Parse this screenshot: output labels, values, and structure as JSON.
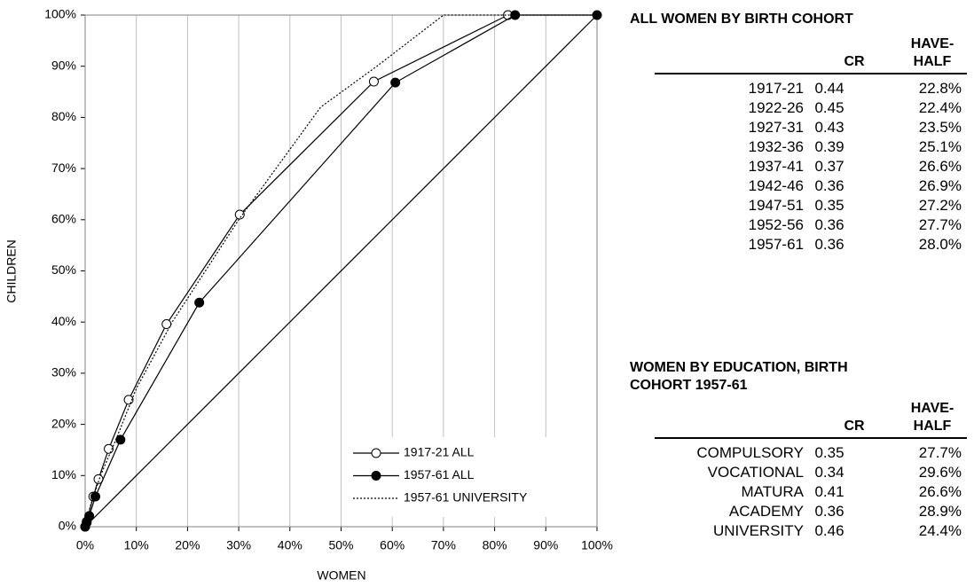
{
  "chart_data": {
    "type": "line",
    "x_label": "WOMEN",
    "y_label": "CHILDREN",
    "xlim": [
      0,
      100
    ],
    "ylim": [
      0,
      100
    ],
    "grid": true,
    "legend": "lower right",
    "xticks": [
      {
        "value": 0,
        "label": "0%"
      },
      {
        "value": 10,
        "label": "10%"
      },
      {
        "value": 20,
        "label": "20%"
      },
      {
        "value": 30,
        "label": "30%"
      },
      {
        "value": 40,
        "label": "40%"
      },
      {
        "value": 50,
        "label": "50%"
      },
      {
        "value": 60,
        "label": "60%"
      },
      {
        "value": 70,
        "label": "70%"
      },
      {
        "value": 80,
        "label": "80%"
      },
      {
        "value": 90,
        "label": "90%"
      },
      {
        "value": 100,
        "label": "100%"
      }
    ],
    "yticks": [
      {
        "value": 0,
        "label": "0%"
      },
      {
        "value": 10,
        "label": "10%"
      },
      {
        "value": 20,
        "label": "20%"
      },
      {
        "value": 30,
        "label": "30%"
      },
      {
        "value": 40,
        "label": "40%"
      },
      {
        "value": 50,
        "label": "50%"
      },
      {
        "value": 60,
        "label": "60%"
      },
      {
        "value": 70,
        "label": "70%"
      },
      {
        "value": 80,
        "label": "80%"
      },
      {
        "value": 90,
        "label": "90%"
      },
      {
        "value": 100,
        "label": "100%"
      }
    ],
    "series": [
      {
        "name": "1917-21 ALL",
        "color": "#000000",
        "marker": "open",
        "dash": "solid",
        "x": [
          0,
          0.3,
          1.6,
          2.6,
          4.6,
          8.5,
          15.9,
          30.2,
          56.4,
          82.6
        ],
        "values": [
          0,
          1,
          5.9,
          9.3,
          15.2,
          24.8,
          39.6,
          61,
          87,
          100
        ]
      },
      {
        "name": "1957-61 ALL",
        "color": "#000000",
        "marker": "filled",
        "dash": "solid",
        "x": [
          0,
          0.3,
          0.8,
          2,
          6.9,
          22.3,
          60.6,
          84,
          100
        ],
        "values": [
          0,
          0.8,
          2.1,
          5.9,
          17,
          43.8,
          86.8,
          100,
          100
        ]
      },
      {
        "name": "1957-61 UNIVERSITY",
        "color": "#000000",
        "marker": "none",
        "dash": "dotted",
        "x": [
          0,
          1,
          3,
          6,
          10,
          17,
          30,
          46,
          57,
          70,
          100
        ],
        "values": [
          0,
          4,
          10,
          17,
          27,
          40,
          60,
          82,
          90,
          100,
          100
        ]
      },
      {
        "color": "#000000",
        "marker": "none",
        "dash": "solid",
        "x": [
          0,
          100
        ],
        "values": [
          0,
          100
        ]
      }
    ]
  },
  "tables": [
    {
      "title": "ALL WOMEN BY BIRTH COHORT",
      "columns": [
        "CR",
        "HAVE-HALF"
      ],
      "rows": [
        [
          "1917-21",
          "0.44",
          "22.8%"
        ],
        [
          "1922-26",
          "0.45",
          "22.4%"
        ],
        [
          "1927-31",
          "0.43",
          "23.5%"
        ],
        [
          "1932-36",
          "0.39",
          "25.1%"
        ],
        [
          "1937-41",
          "0.37",
          "26.6%"
        ],
        [
          "1942-46",
          "0.36",
          "26.9%"
        ],
        [
          "1947-51",
          "0.35",
          "27.2%"
        ],
        [
          "1952-56",
          "0.36",
          "27.7%"
        ],
        [
          "1957-61",
          "0.36",
          "28.0%"
        ]
      ]
    },
    {
      "title": "WOMEN BY EDUCATION, BIRTH COHORT 1957-61",
      "columns": [
        "CR",
        "HAVE-HALF"
      ],
      "rows": [
        [
          "COMPULSORY",
          "0.35",
          "27.7%"
        ],
        [
          "VOCATIONAL",
          "0.34",
          "29.6%"
        ],
        [
          "MATURA",
          "0.41",
          "26.6%"
        ],
        [
          "ACADEMY",
          "0.36",
          "28.9%"
        ],
        [
          "UNIVERSITY",
          "0.46",
          "24.4%"
        ]
      ]
    }
  ]
}
